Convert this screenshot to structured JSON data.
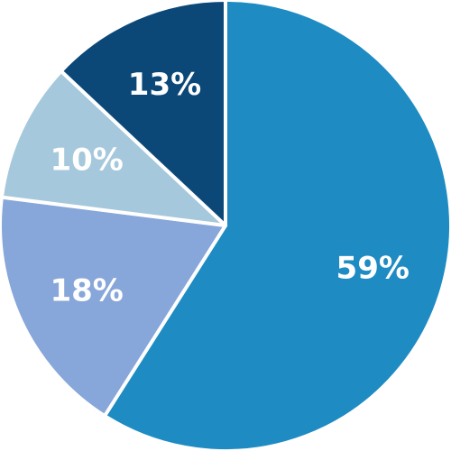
{
  "chart_data": {
    "type": "pie",
    "slices": [
      {
        "value": 59,
        "label": "59%",
        "color": "#1e8bc3",
        "label_color": "#ffffff"
      },
      {
        "value": 18,
        "label": "18%",
        "color": "#87a6d9",
        "label_color": "#ffffff"
      },
      {
        "value": 10,
        "label": "10%",
        "color": "#a5c8dc",
        "label_color": "#ffffff"
      },
      {
        "value": 13,
        "label": "13%",
        "color": "#0b4878",
        "label_color": "#ffffff"
      }
    ],
    "start_angle_deg": 0,
    "direction": "clockwise",
    "legend": "none"
  }
}
